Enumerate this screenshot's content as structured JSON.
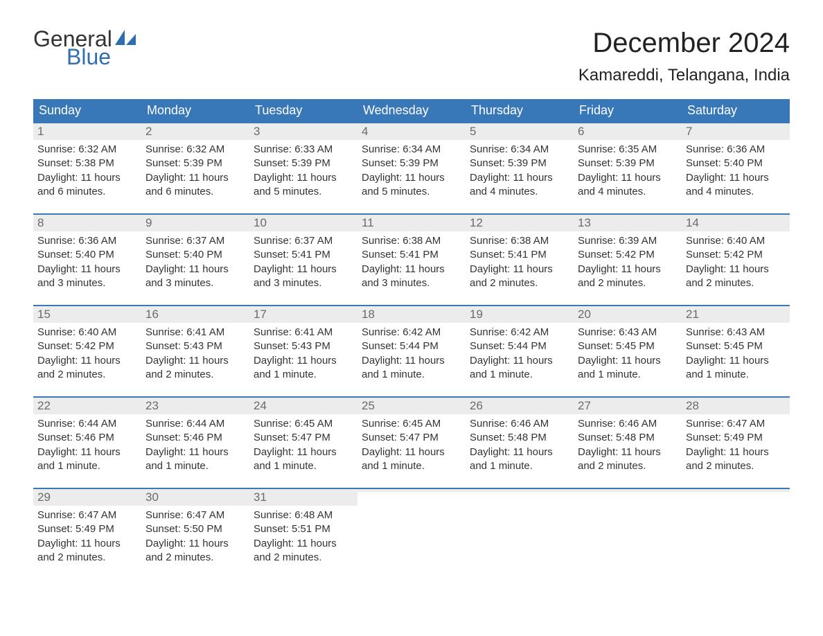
{
  "logo": {
    "text1": "General",
    "text2": "Blue"
  },
  "title": "December 2024",
  "location": "Kamareddi, Telangana, India",
  "colors": {
    "header_bg": "#3878b8",
    "header_text": "#ffffff",
    "datenum_bg": "#ececec",
    "datenum_text": "#6a6a6a",
    "body_text": "#333333",
    "row_border": "#3878b8",
    "logo_blue": "#2f6fb0"
  },
  "fonts": {
    "title_size_pt": 30,
    "location_size_pt": 18,
    "dayheader_size_pt": 13,
    "cell_size_pt": 11
  },
  "day_headers": [
    "Sunday",
    "Monday",
    "Tuesday",
    "Wednesday",
    "Thursday",
    "Friday",
    "Saturday"
  ],
  "weeks": [
    [
      {
        "date": "1",
        "sunrise": "Sunrise: 6:32 AM",
        "sunset": "Sunset: 5:38 PM",
        "day1": "Daylight: 11 hours",
        "day2": "and 6 minutes."
      },
      {
        "date": "2",
        "sunrise": "Sunrise: 6:32 AM",
        "sunset": "Sunset: 5:39 PM",
        "day1": "Daylight: 11 hours",
        "day2": "and 6 minutes."
      },
      {
        "date": "3",
        "sunrise": "Sunrise: 6:33 AM",
        "sunset": "Sunset: 5:39 PM",
        "day1": "Daylight: 11 hours",
        "day2": "and 5 minutes."
      },
      {
        "date": "4",
        "sunrise": "Sunrise: 6:34 AM",
        "sunset": "Sunset: 5:39 PM",
        "day1": "Daylight: 11 hours",
        "day2": "and 5 minutes."
      },
      {
        "date": "5",
        "sunrise": "Sunrise: 6:34 AM",
        "sunset": "Sunset: 5:39 PM",
        "day1": "Daylight: 11 hours",
        "day2": "and 4 minutes."
      },
      {
        "date": "6",
        "sunrise": "Sunrise: 6:35 AM",
        "sunset": "Sunset: 5:39 PM",
        "day1": "Daylight: 11 hours",
        "day2": "and 4 minutes."
      },
      {
        "date": "7",
        "sunrise": "Sunrise: 6:36 AM",
        "sunset": "Sunset: 5:40 PM",
        "day1": "Daylight: 11 hours",
        "day2": "and 4 minutes."
      }
    ],
    [
      {
        "date": "8",
        "sunrise": "Sunrise: 6:36 AM",
        "sunset": "Sunset: 5:40 PM",
        "day1": "Daylight: 11 hours",
        "day2": "and 3 minutes."
      },
      {
        "date": "9",
        "sunrise": "Sunrise: 6:37 AM",
        "sunset": "Sunset: 5:40 PM",
        "day1": "Daylight: 11 hours",
        "day2": "and 3 minutes."
      },
      {
        "date": "10",
        "sunrise": "Sunrise: 6:37 AM",
        "sunset": "Sunset: 5:41 PM",
        "day1": "Daylight: 11 hours",
        "day2": "and 3 minutes."
      },
      {
        "date": "11",
        "sunrise": "Sunrise: 6:38 AM",
        "sunset": "Sunset: 5:41 PM",
        "day1": "Daylight: 11 hours",
        "day2": "and 3 minutes."
      },
      {
        "date": "12",
        "sunrise": "Sunrise: 6:38 AM",
        "sunset": "Sunset: 5:41 PM",
        "day1": "Daylight: 11 hours",
        "day2": "and 2 minutes."
      },
      {
        "date": "13",
        "sunrise": "Sunrise: 6:39 AM",
        "sunset": "Sunset: 5:42 PM",
        "day1": "Daylight: 11 hours",
        "day2": "and 2 minutes."
      },
      {
        "date": "14",
        "sunrise": "Sunrise: 6:40 AM",
        "sunset": "Sunset: 5:42 PM",
        "day1": "Daylight: 11 hours",
        "day2": "and 2 minutes."
      }
    ],
    [
      {
        "date": "15",
        "sunrise": "Sunrise: 6:40 AM",
        "sunset": "Sunset: 5:42 PM",
        "day1": "Daylight: 11 hours",
        "day2": "and 2 minutes."
      },
      {
        "date": "16",
        "sunrise": "Sunrise: 6:41 AM",
        "sunset": "Sunset: 5:43 PM",
        "day1": "Daylight: 11 hours",
        "day2": "and 2 minutes."
      },
      {
        "date": "17",
        "sunrise": "Sunrise: 6:41 AM",
        "sunset": "Sunset: 5:43 PM",
        "day1": "Daylight: 11 hours",
        "day2": "and 1 minute."
      },
      {
        "date": "18",
        "sunrise": "Sunrise: 6:42 AM",
        "sunset": "Sunset: 5:44 PM",
        "day1": "Daylight: 11 hours",
        "day2": "and 1 minute."
      },
      {
        "date": "19",
        "sunrise": "Sunrise: 6:42 AM",
        "sunset": "Sunset: 5:44 PM",
        "day1": "Daylight: 11 hours",
        "day2": "and 1 minute."
      },
      {
        "date": "20",
        "sunrise": "Sunrise: 6:43 AM",
        "sunset": "Sunset: 5:45 PM",
        "day1": "Daylight: 11 hours",
        "day2": "and 1 minute."
      },
      {
        "date": "21",
        "sunrise": "Sunrise: 6:43 AM",
        "sunset": "Sunset: 5:45 PM",
        "day1": "Daylight: 11 hours",
        "day2": "and 1 minute."
      }
    ],
    [
      {
        "date": "22",
        "sunrise": "Sunrise: 6:44 AM",
        "sunset": "Sunset: 5:46 PM",
        "day1": "Daylight: 11 hours",
        "day2": "and 1 minute."
      },
      {
        "date": "23",
        "sunrise": "Sunrise: 6:44 AM",
        "sunset": "Sunset: 5:46 PM",
        "day1": "Daylight: 11 hours",
        "day2": "and 1 minute."
      },
      {
        "date": "24",
        "sunrise": "Sunrise: 6:45 AM",
        "sunset": "Sunset: 5:47 PM",
        "day1": "Daylight: 11 hours",
        "day2": "and 1 minute."
      },
      {
        "date": "25",
        "sunrise": "Sunrise: 6:45 AM",
        "sunset": "Sunset: 5:47 PM",
        "day1": "Daylight: 11 hours",
        "day2": "and 1 minute."
      },
      {
        "date": "26",
        "sunrise": "Sunrise: 6:46 AM",
        "sunset": "Sunset: 5:48 PM",
        "day1": "Daylight: 11 hours",
        "day2": "and 1 minute."
      },
      {
        "date": "27",
        "sunrise": "Sunrise: 6:46 AM",
        "sunset": "Sunset: 5:48 PM",
        "day1": "Daylight: 11 hours",
        "day2": "and 2 minutes."
      },
      {
        "date": "28",
        "sunrise": "Sunrise: 6:47 AM",
        "sunset": "Sunset: 5:49 PM",
        "day1": "Daylight: 11 hours",
        "day2": "and 2 minutes."
      }
    ],
    [
      {
        "date": "29",
        "sunrise": "Sunrise: 6:47 AM",
        "sunset": "Sunset: 5:49 PM",
        "day1": "Daylight: 11 hours",
        "day2": "and 2 minutes."
      },
      {
        "date": "30",
        "sunrise": "Sunrise: 6:47 AM",
        "sunset": "Sunset: 5:50 PM",
        "day1": "Daylight: 11 hours",
        "day2": "and 2 minutes."
      },
      {
        "date": "31",
        "sunrise": "Sunrise: 6:48 AM",
        "sunset": "Sunset: 5:51 PM",
        "day1": "Daylight: 11 hours",
        "day2": "and 2 minutes."
      },
      {
        "empty": true
      },
      {
        "empty": true
      },
      {
        "empty": true
      },
      {
        "empty": true
      }
    ]
  ]
}
